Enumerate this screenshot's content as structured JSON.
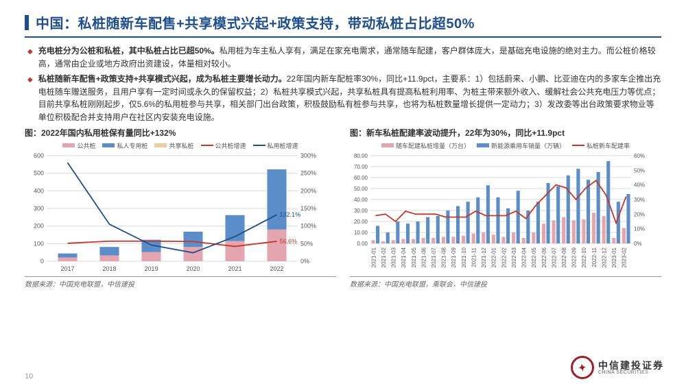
{
  "title": "中国：私桩随新车配售+共享模式兴起+政策支持，带动私桩占比超50%",
  "bullets": [
    {
      "bold": "充电桩分为公桩和私桩，其中私桩占比已超50%。",
      "text": "私用桩为车主私人享有，满足在家充电需求，通常随车配建，客户群体庞大，是基础充电设施的绝对主力。而公桩价格较高，通常由企业或地方政府出资建设，体量相对较小。"
    },
    {
      "bold": "私桩随新车配售+政策支持+共享模式兴起，成为私桩主要增长动力。",
      "text": "22年国内新车配桩率30%，同比+11.9pct，主要系：1）包括蔚来、小鹏、比亚迪在内的多家车企推出充电桩随车赠送服务，且用户享有一定时间或永久的保留权益；2）私桩共享模式兴起，共享私桩具有提高私桩利用率、为桩主带来额外收入、缓解社会公共充电压力等优点；目前共享私桩刚刚起步，仅5.6%的私用桩参与共享，相关部门出台政策，积极鼓励私有桩参与共享，也将为私桩数量增长提供一定动力；3）发改委等出台政策要求物业等单位积极配合并支持用户在社区内安装充电设施。"
    }
  ],
  "chart1": {
    "title": "图：2022年国内私用桩保有量同比+132%",
    "legend": [
      {
        "label": "公共桩",
        "type": "box",
        "color": "#e4a5b0"
      },
      {
        "label": "私人专用桩",
        "type": "box",
        "color": "#5b8ec9"
      },
      {
        "label": "共享私桩",
        "type": "box",
        "color": "#e9cfa3"
      },
      {
        "label": "公共桩增速",
        "type": "line",
        "color": "#c0392b"
      },
      {
        "label": "私用桩增速",
        "type": "line",
        "color": "#1f4e8c"
      }
    ],
    "type": "bar+line",
    "categories": [
      "2017",
      "2018",
      "2019",
      "2020",
      "2021",
      "2022"
    ],
    "yLeft": {
      "min": 0,
      "max": 600,
      "step": 100
    },
    "yRight": {
      "min": 0,
      "max": 300,
      "step": 50,
      "suffix": "%"
    },
    "bars": {
      "public": {
        "color": "#e4a5b0",
        "values": [
          21,
          33,
          52,
          81,
          115,
          180
        ]
      },
      "private": {
        "color": "#5b8ec9",
        "values": [
          23,
          48,
          70,
          87,
          147,
          342
        ]
      },
      "shared": {
        "color": "#e9cfa3",
        "values": [
          0,
          0,
          0,
          0,
          0,
          0
        ]
      }
    },
    "lines": {
      "publicGrowth": {
        "color": "#c0392b",
        "values": [
          51,
          57,
          57,
          56,
          42,
          56.6
        ],
        "endLabel": "56.6%"
      },
      "privateGrowth": {
        "color": "#1f4e8c",
        "values": [
          280,
          105,
          46,
          24,
          70,
          132.1
        ],
        "endLabel": "132.1%"
      }
    },
    "source": "数据来源：中国充电联盟，中信建投",
    "colors": {
      "grid": "#d9d9d9",
      "axis": "#888",
      "text": "#555",
      "bg": "#ffffff"
    }
  },
  "chart2": {
    "title": "图：新车私桩配建率波动提升，22年为30%，同比+11.9pct",
    "legend": [
      {
        "label": "随车配建私桩增量（万台）",
        "type": "box",
        "color": "#e4a5b0"
      },
      {
        "label": "新能源乘用车销量（万辆）",
        "type": "box",
        "color": "#5b8ec9"
      },
      {
        "label": "私桩新车配建率",
        "type": "line",
        "color": "#c0392b"
      }
    ],
    "type": "bar+line",
    "categories": [
      "2021-01",
      "2021-02",
      "2021-03",
      "2021-04",
      "2021-05",
      "2021-06",
      "2021-07",
      "2021-08",
      "2021-09",
      "2021-10",
      "2021-11",
      "2021-12",
      "2022-01",
      "2022-02",
      "2022-03",
      "2022-04",
      "2022-05",
      "2022-06",
      "2022-07",
      "2022-08",
      "2022-09",
      "2022-10",
      "2022-11",
      "2022-12",
      "2023-01",
      "2023-02"
    ],
    "yLeft": {
      "min": 0,
      "max": 80,
      "step": 10
    },
    "yRight": {
      "min": 0,
      "max": 60,
      "step": 10,
      "suffix": "%"
    },
    "bars": {
      "privateInc": {
        "color": "#e4a5b0",
        "values": [
          3,
          2,
          3,
          4,
          4,
          5,
          5,
          6,
          6,
          7,
          9,
          10,
          8,
          6,
          10,
          5,
          10,
          18,
          21,
          24,
          21,
          22,
          28,
          25,
          5,
          14
        ]
      },
      "nevSales": {
        "color": "#5b8ec9",
        "values": [
          16,
          10,
          20,
          18,
          20,
          24,
          25,
          30,
          34,
          38,
          42,
          53,
          42,
          32,
          48,
          30,
          38,
          55,
          52,
          62,
          68,
          58,
          65,
          75,
          38,
          45
        ]
      }
    },
    "lines": {
      "ratio": {
        "color": "#c0392b",
        "values": [
          19,
          20,
          15,
          22,
          20,
          20,
          20,
          18,
          18,
          18,
          22,
          19,
          19,
          19,
          22,
          17,
          26,
          33,
          40,
          38,
          30,
          38,
          43,
          33,
          14,
          32
        ]
      }
    },
    "source": "数据来源：中国充电联盟，乘联会，中信建投",
    "colors": {
      "grid": "#d9d9d9",
      "axis": "#888",
      "text": "#555",
      "bg": "#ffffff"
    }
  },
  "pageNumber": "10",
  "logo": {
    "cn": "中信建投证券",
    "en": "CHINA SECURITIES"
  }
}
